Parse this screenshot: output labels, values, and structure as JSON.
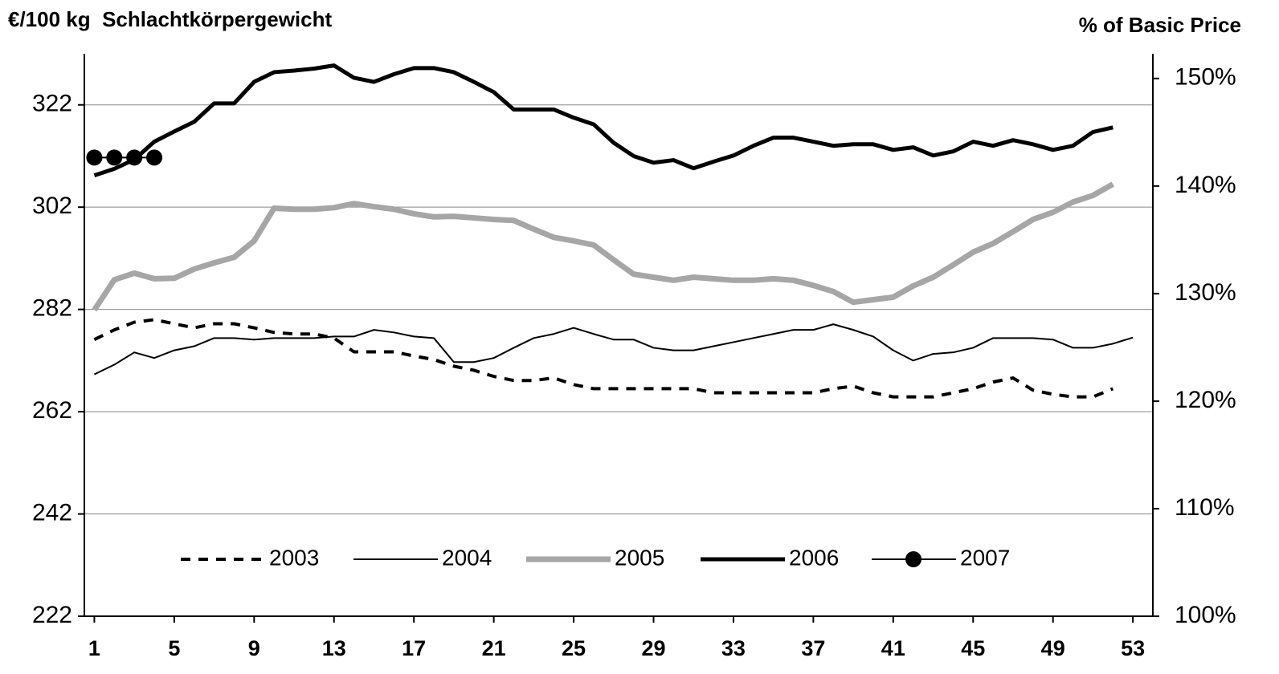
{
  "chart_data": {
    "type": "line",
    "title": "€/100 kg  Schlachtkörpergewicht",
    "y2_label": "% of Basic Price",
    "x": [
      1,
      2,
      3,
      4,
      5,
      6,
      7,
      8,
      9,
      10,
      11,
      12,
      13,
      14,
      15,
      16,
      17,
      18,
      19,
      20,
      21,
      22,
      23,
      24,
      25,
      26,
      27,
      28,
      29,
      30,
      31,
      32,
      33,
      34,
      35,
      36,
      37,
      38,
      39,
      40,
      41,
      42,
      43,
      44,
      45,
      46,
      47,
      48,
      49,
      50,
      51,
      52,
      53
    ],
    "xlim": [
      0.5,
      54
    ],
    "xticks": [
      1,
      5,
      9,
      13,
      17,
      21,
      25,
      29,
      33,
      37,
      41,
      45,
      49,
      53
    ],
    "ylim": [
      222,
      332
    ],
    "yticks": [
      222,
      242,
      262,
      282,
      302,
      322
    ],
    "y2lim": [
      100,
      152.3
    ],
    "y2ticks": [
      {
        "value": 100,
        "label": "100%"
      },
      {
        "value": 110,
        "label": "110%"
      },
      {
        "value": 120,
        "label": "120%"
      },
      {
        "value": 130,
        "label": "130%"
      },
      {
        "value": 140,
        "label": "140%"
      },
      {
        "value": 150,
        "label": "150%"
      }
    ],
    "grid": true,
    "legend": "bottom",
    "series": [
      {
        "name": "2003",
        "color": "#000000",
        "linestyle": "dashed",
        "values": [
          276.1,
          278,
          279.5,
          280,
          279.2,
          278.4,
          279.2,
          279.2,
          278.4,
          277.5,
          277.2,
          277.2,
          276.4,
          273.7,
          273.7,
          273.7,
          272.9,
          272.2,
          270.9,
          270.1,
          268.9,
          268.1,
          268.1,
          268.6,
          267.3,
          266.5,
          266.5,
          266.5,
          266.5,
          266.5,
          266.5,
          265.7,
          265.7,
          265.7,
          265.7,
          265.7,
          265.7,
          266.5,
          267,
          265.7,
          264.9,
          264.9,
          264.9,
          265.7,
          266.5,
          267.8,
          268.6,
          266.2,
          265.4,
          264.9,
          264.9,
          266.5,
          null
        ]
      },
      {
        "name": "2004",
        "color": "#000000",
        "linestyle": "solid",
        "values": [
          269.3,
          271.2,
          273.6,
          272.5,
          274,
          274.8,
          276.4,
          276.4,
          276.1,
          276.4,
          276.4,
          276.4,
          276.7,
          276.7,
          278,
          277.5,
          276.7,
          276.4,
          271.7,
          271.7,
          272.5,
          274.5,
          276.4,
          277.2,
          278.4,
          277.2,
          276.1,
          276.1,
          274.5,
          274,
          274,
          274.8,
          275.6,
          276.4,
          277.2,
          278,
          278,
          279.1,
          278,
          276.7,
          274,
          272,
          273.3,
          273.6,
          274.5,
          276.4,
          276.4,
          276.4,
          276.1,
          274.5,
          274.5,
          275.3,
          276.5
        ]
      },
      {
        "name": "2005",
        "color": "#a6a6a6",
        "linestyle": "solid",
        "values": [
          281.9,
          287.8,
          289.1,
          288,
          288.1,
          289.9,
          291.1,
          292.2,
          295.4,
          301.8,
          301.6,
          301.6,
          301.9,
          302.7,
          302.1,
          301.6,
          300.7,
          300.1,
          300.2,
          299.9,
          299.6,
          299.4,
          297.7,
          296.1,
          295.4,
          294.6,
          291.7,
          288.9,
          288.3,
          287.7,
          288.3,
          288,
          287.7,
          287.7,
          288,
          287.7,
          286.7,
          285.5,
          283.4,
          283.9,
          284.4,
          286.6,
          288.3,
          290.7,
          293.2,
          294.9,
          297.2,
          299.6,
          301,
          303,
          304.3,
          306.5,
          null
        ]
      },
      {
        "name": "2006",
        "color": "#000000",
        "linestyle": "solid",
        "values": [
          308.2,
          309.5,
          311.3,
          314.8,
          316.8,
          318.7,
          322.3,
          322.3,
          326.5,
          328.4,
          328.7,
          329.1,
          329.7,
          327.3,
          326.5,
          328,
          329.2,
          329.2,
          328.4,
          326.5,
          324.5,
          321.1,
          321.1,
          321.1,
          319.5,
          318.2,
          314.6,
          312,
          310.7,
          311.2,
          309.6,
          310.9,
          312.1,
          314,
          315.6,
          315.6,
          314.8,
          314,
          314.3,
          314.3,
          313.2,
          313.7,
          312.1,
          312.9,
          314.8,
          314,
          315.1,
          314.3,
          313.2,
          314,
          316.7,
          317.6,
          null
        ]
      },
      {
        "name": "2007",
        "color": "#000000",
        "linestyle": "solid",
        "marker": "circle",
        "values": [
          311.7,
          311.7,
          311.7,
          311.7,
          null,
          null,
          null,
          null,
          null,
          null,
          null,
          null,
          null,
          null,
          null,
          null,
          null,
          null,
          null,
          null,
          null,
          null,
          null,
          null,
          null,
          null,
          null,
          null,
          null,
          null,
          null,
          null,
          null,
          null,
          null,
          null,
          null,
          null,
          null,
          null,
          null,
          null,
          null,
          null,
          null,
          null,
          null,
          null,
          null,
          null,
          null,
          null,
          null
        ]
      }
    ]
  }
}
